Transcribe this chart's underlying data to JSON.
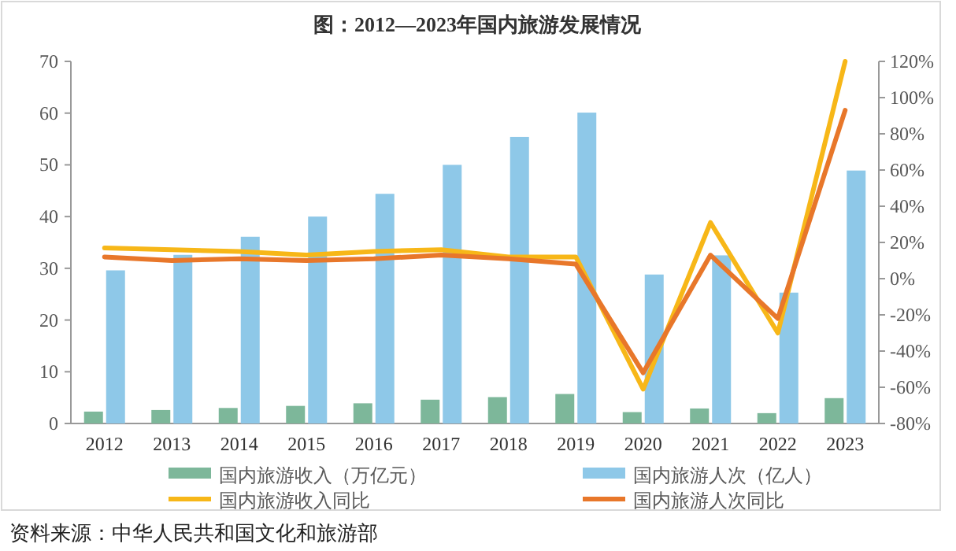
{
  "chart_data": {
    "type": "bar",
    "title": "图：2012—2023年国内旅游发展情况",
    "categories": [
      "2012",
      "2013",
      "2014",
      "2015",
      "2016",
      "2017",
      "2018",
      "2019",
      "2020",
      "2021",
      "2022",
      "2023"
    ],
    "series": [
      {
        "name": "国内旅游收入（万亿元）",
        "color": "#7db79a",
        "values": [
          2.3,
          2.6,
          3.0,
          3.4,
          3.9,
          4.6,
          5.1,
          5.7,
          2.2,
          2.9,
          2.0,
          4.9
        ]
      },
      {
        "name": "国内旅游人次（亿人）",
        "color": "#8ec8e8",
        "values": [
          29.6,
          32.6,
          36.1,
          40.0,
          44.4,
          50.0,
          55.4,
          60.1,
          28.8,
          32.5,
          25.3,
          48.9
        ]
      },
      {
        "name": "国内旅游收入同比",
        "type": "line",
        "axis": "y2",
        "color": "#f7b718",
        "values": [
          17,
          16,
          15,
          13,
          15,
          16,
          12,
          12,
          -61,
          31,
          -30,
          120
        ]
      },
      {
        "name": "国内旅游人次同比",
        "type": "line",
        "axis": "y2",
        "color": "#e8772a",
        "values": [
          12,
          10,
          11,
          10,
          11,
          13,
          11,
          8,
          -52,
          13,
          -22,
          93
        ]
      }
    ],
    "ylim": [
      0,
      70
    ],
    "yticks": [
      0,
      10,
      20,
      30,
      40,
      50,
      60,
      70
    ],
    "y2lim": [
      -80,
      120
    ],
    "y2ticks": [
      {
        "value": -80,
        "label": "-80%"
      },
      {
        "value": -60,
        "label": "-60%"
      },
      {
        "value": -40,
        "label": "-40%"
      },
      {
        "value": -20,
        "label": "-20%"
      },
      {
        "value": 0,
        "label": "0%"
      },
      {
        "value": 20,
        "label": "20%"
      },
      {
        "value": 40,
        "label": "40%"
      },
      {
        "value": 60,
        "label": "60%"
      },
      {
        "value": 80,
        "label": "80%"
      },
      {
        "value": 100,
        "label": "100%"
      },
      {
        "value": 120,
        "label": "120%"
      }
    ],
    "grid": false,
    "legend": "bottom",
    "annotations": [
      "资料来源：中华人民共和国文化和旅游部"
    ]
  }
}
